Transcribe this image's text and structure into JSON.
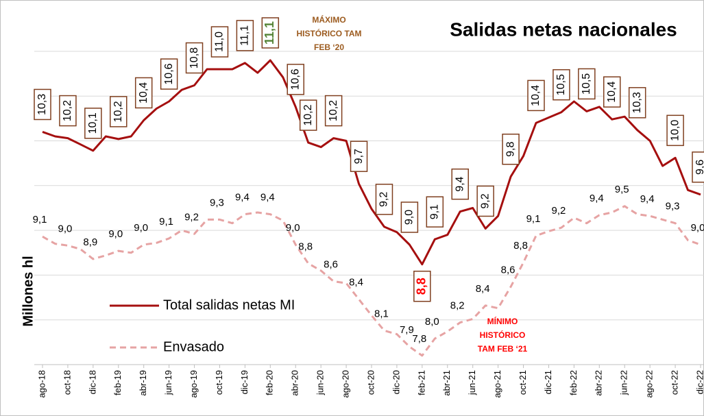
{
  "chart_data": {
    "type": "line",
    "title": "Salidas netas nacionales",
    "y_label": "Millones hl",
    "categories": [
      "ago-18",
      null,
      "oct-18",
      null,
      "dic-18",
      null,
      "feb-19",
      null,
      "abr-19",
      null,
      "jun-19",
      null,
      "ago-19",
      null,
      "oct-19",
      null,
      "dic-19",
      null,
      "feb-20",
      null,
      "abr-20",
      null,
      "jun-20",
      null,
      "ago-20",
      null,
      "oct-20",
      null,
      "dic-20",
      null,
      "feb-21",
      null,
      "abr-21",
      null,
      "jun-21",
      null,
      "ago-21",
      null,
      "oct-21",
      null,
      "dic-21",
      null,
      "feb-22",
      null,
      "abr-22",
      null,
      "jun-22",
      null,
      "ago-22",
      null,
      "oct-22",
      null,
      "dic-22"
    ],
    "ylim": [
      7.7,
      11.7
    ],
    "yticks": [
      8.2,
      8.7,
      9.2,
      9.7,
      10.2,
      10.7,
      11.2
    ],
    "grid": true,
    "legend": "lower left",
    "series": [
      {
        "name": "Total salidas netas MI",
        "color": "#a50f0f",
        "dash": false,
        "boxed": true,
        "max_label_color": "#548235",
        "min_label_color": "#ff0000",
        "values": [
          10.3,
          10.25,
          10.23,
          10.16,
          10.09,
          10.25,
          10.22,
          10.25,
          10.43,
          10.56,
          10.64,
          10.77,
          10.82,
          11.0,
          11.0,
          11.0,
          11.07,
          10.96,
          11.1,
          10.91,
          10.58,
          10.18,
          10.13,
          10.23,
          10.2,
          9.72,
          9.44,
          9.24,
          9.18,
          9.04,
          8.82,
          9.1,
          9.15,
          9.41,
          9.45,
          9.22,
          9.36,
          9.8,
          10.03,
          10.4,
          10.46,
          10.52,
          10.64,
          10.53,
          10.58,
          10.44,
          10.47,
          10.32,
          10.2,
          9.92,
          10.01,
          9.65,
          9.6
        ],
        "value_labels": [
          "10,3",
          null,
          "10,2",
          null,
          "10,1",
          null,
          "10,2",
          null,
          "10,4",
          null,
          "10,6",
          null,
          "10,8",
          null,
          "11,0",
          null,
          "11,1",
          null,
          "11,1",
          null,
          "10,6",
          "10,2",
          null,
          "10,2",
          null,
          "9,7",
          null,
          "9,2",
          null,
          "9,0",
          "8,8",
          "9,1",
          null,
          "9,4",
          null,
          "9,2",
          null,
          "9,8",
          null,
          "10,4",
          null,
          "10,5",
          null,
          "10,5",
          null,
          "10,4",
          null,
          "10,3",
          null,
          null,
          "10,0",
          null,
          "9,6"
        ]
      },
      {
        "name": "Envasado",
        "color": "#e6a3a3",
        "dash": true,
        "boxed": false,
        "values": [
          9.13,
          9.05,
          9.03,
          8.99,
          8.88,
          8.92,
          8.97,
          8.95,
          9.04,
          9.06,
          9.11,
          9.2,
          9.16,
          9.32,
          9.32,
          9.28,
          9.38,
          9.4,
          9.38,
          9.31,
          9.04,
          8.83,
          8.75,
          8.63,
          8.61,
          8.43,
          8.25,
          8.08,
          8.04,
          7.9,
          7.8,
          7.99,
          8.07,
          8.17,
          8.21,
          8.36,
          8.33,
          8.57,
          8.84,
          9.14,
          9.19,
          9.23,
          9.34,
          9.28,
          9.37,
          9.4,
          9.47,
          9.38,
          9.36,
          9.32,
          9.28,
          9.09,
          9.04
        ],
        "value_labels": [
          "9,1",
          null,
          "9,0",
          null,
          "8,9",
          null,
          "9,0",
          null,
          "9,0",
          null,
          "9,1",
          null,
          "9,2",
          null,
          "9,3",
          null,
          "9,4",
          null,
          "9,4",
          null,
          "9,0",
          "8,8",
          null,
          "8,6",
          null,
          "8,4",
          null,
          "8,1",
          null,
          "7,9",
          "7,8",
          "8,0",
          null,
          "8,2",
          null,
          "8,4",
          null,
          "8,6",
          "8,8",
          "9,1",
          null,
          "9,2",
          null,
          null,
          "9,4",
          null,
          "9,5",
          null,
          "9,4",
          null,
          "9,3",
          null,
          "9,0"
        ]
      }
    ],
    "annotations": [
      {
        "lines": [
          "MÁXIMO",
          "HISTÓRICO TAM",
          "FEB ‘20"
        ],
        "color": "#9c5b1f"
      },
      {
        "lines": [
          "MÍNIMO",
          "HISTÓRICO",
          "TAM FEB ‘21"
        ],
        "color": "#ff0000"
      }
    ]
  }
}
